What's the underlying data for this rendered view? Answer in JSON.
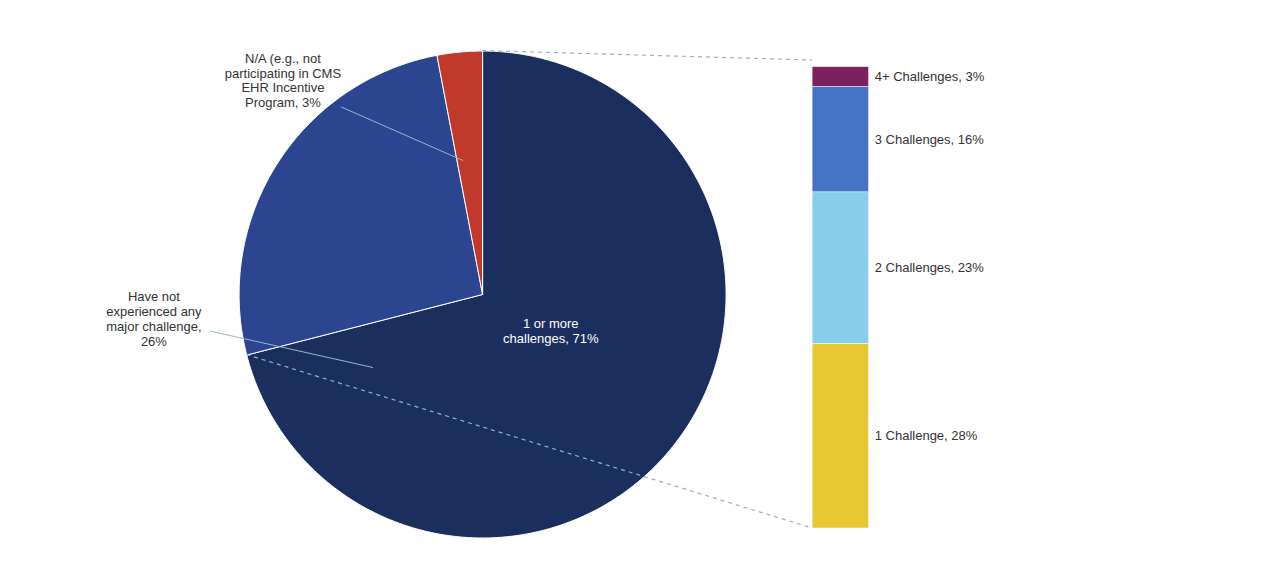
{
  "chart_data": [
    {
      "type": "pie",
      "values": [
        71,
        26,
        3
      ],
      "value_labels": [
        "1 or more\nchallenges, 71%",
        "Have not\nexperienced any\nmajor challenge,\n26%",
        "N/A (e.g., not\nparticipating in CMS\nEHR Incentive\nProgram, 3%"
      ],
      "colors": [
        "#1B2F5E",
        "#2B4590",
        "#C0392B"
      ]
    },
    {
      "type": "bar",
      "stacked": true,
      "values": [
        28,
        23,
        16,
        3
      ],
      "value_labels": [
        "1 Challenge, 28%",
        "2 Challenges, 23%",
        "3 Challenges, 16%",
        "4+ Challenges, 3%"
      ],
      "colors": [
        "#E8C832",
        "#87CEEB",
        "#4472C4",
        "#7B2060"
      ],
      "ylim": [
        0,
        71
      ],
      "tick_labels": false
    }
  ]
}
